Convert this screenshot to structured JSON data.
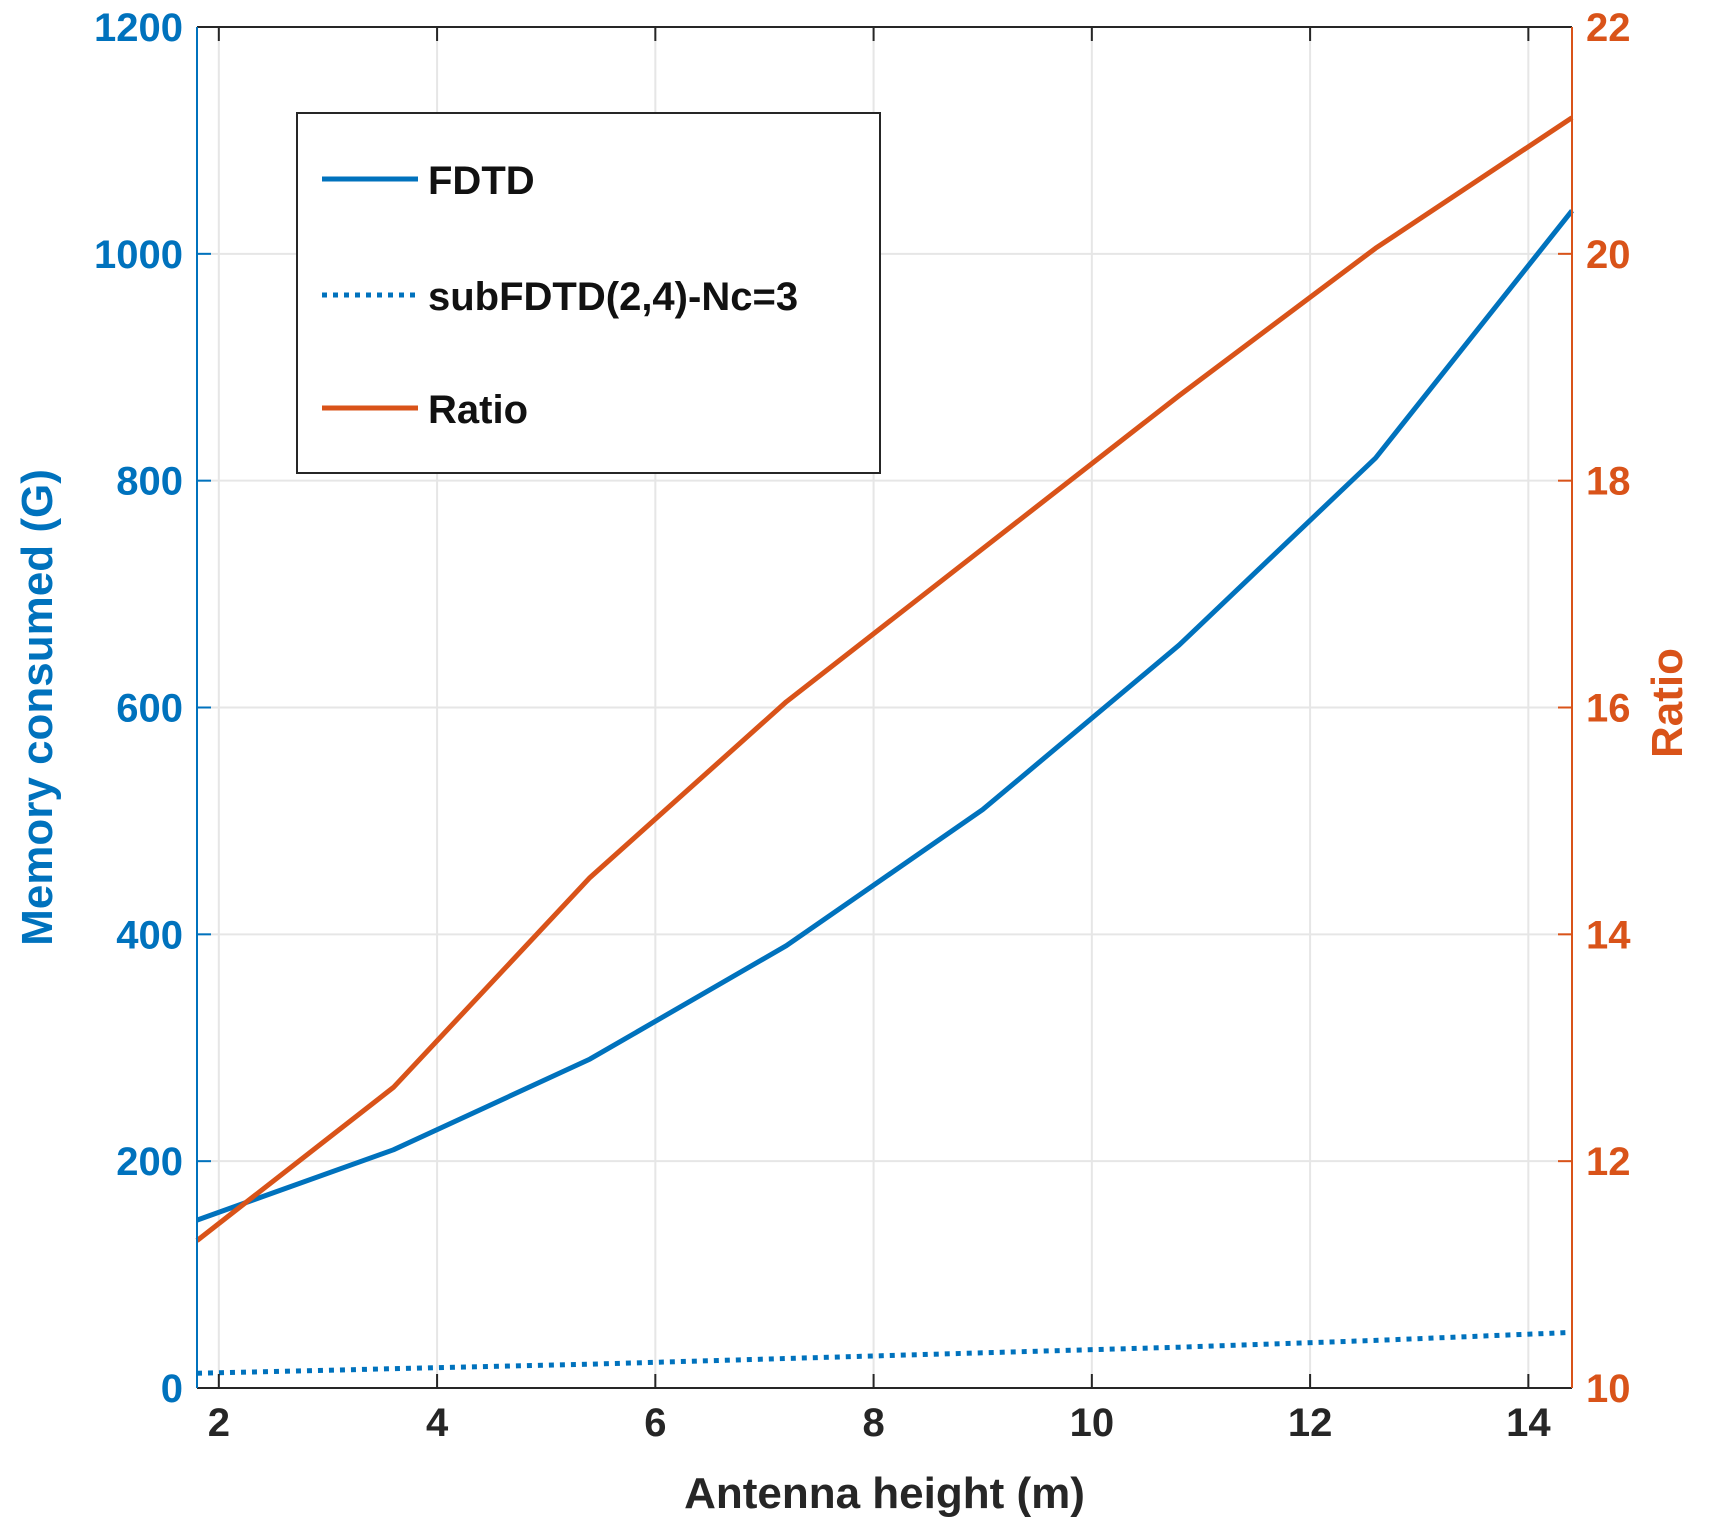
{
  "chart_data": {
    "type": "line",
    "title": "",
    "xlabel": "Antenna height (m)",
    "ylabel_left": "Memory consumed (G)",
    "ylabel_right": "Ratio",
    "xlim": [
      1.8,
      14.4
    ],
    "ylim_left": [
      0,
      1200
    ],
    "ylim_right": [
      10,
      22
    ],
    "x_ticks": [
      "2",
      "4",
      "6",
      "8",
      "10",
      "12",
      "14"
    ],
    "y_left_ticks": [
      "0",
      "200",
      "400",
      "600",
      "800",
      "1000",
      "1200"
    ],
    "y_right_ticks": [
      "10",
      "12",
      "14",
      "16",
      "18",
      "20",
      "22"
    ],
    "grid": true,
    "legend_position": "top-left",
    "series": [
      {
        "name": "FDTD",
        "axis": "left",
        "style": "solid",
        "color": "#0072BD",
        "x": [
          1.8,
          3.6,
          5.4,
          7.2,
          9.0,
          10.8,
          12.6,
          14.4
        ],
        "y": [
          148,
          210,
          290,
          390,
          510,
          655,
          820,
          1038
        ]
      },
      {
        "name": "subFDTD(2,4)-Nc=3",
        "axis": "left",
        "style": "dotted",
        "color": "#0072BD",
        "x": [
          1.8,
          3.6,
          5.4,
          7.2,
          9.0,
          10.8,
          12.6,
          14.4
        ],
        "y": [
          13,
          17,
          21,
          26,
          31,
          36,
          42,
          49
        ]
      },
      {
        "name": "Ratio",
        "axis": "right",
        "style": "solid",
        "color": "#D95319",
        "x": [
          1.8,
          3.6,
          5.4,
          7.2,
          9.0,
          10.8,
          12.6,
          14.4
        ],
        "y": [
          11.3,
          12.65,
          14.5,
          16.05,
          17.4,
          18.75,
          20.05,
          21.2
        ]
      }
    ]
  },
  "colors": {
    "left_axis": "#0072BD",
    "right_axis": "#D95319",
    "grid": "#e6e6e6",
    "frame": "#262626"
  }
}
